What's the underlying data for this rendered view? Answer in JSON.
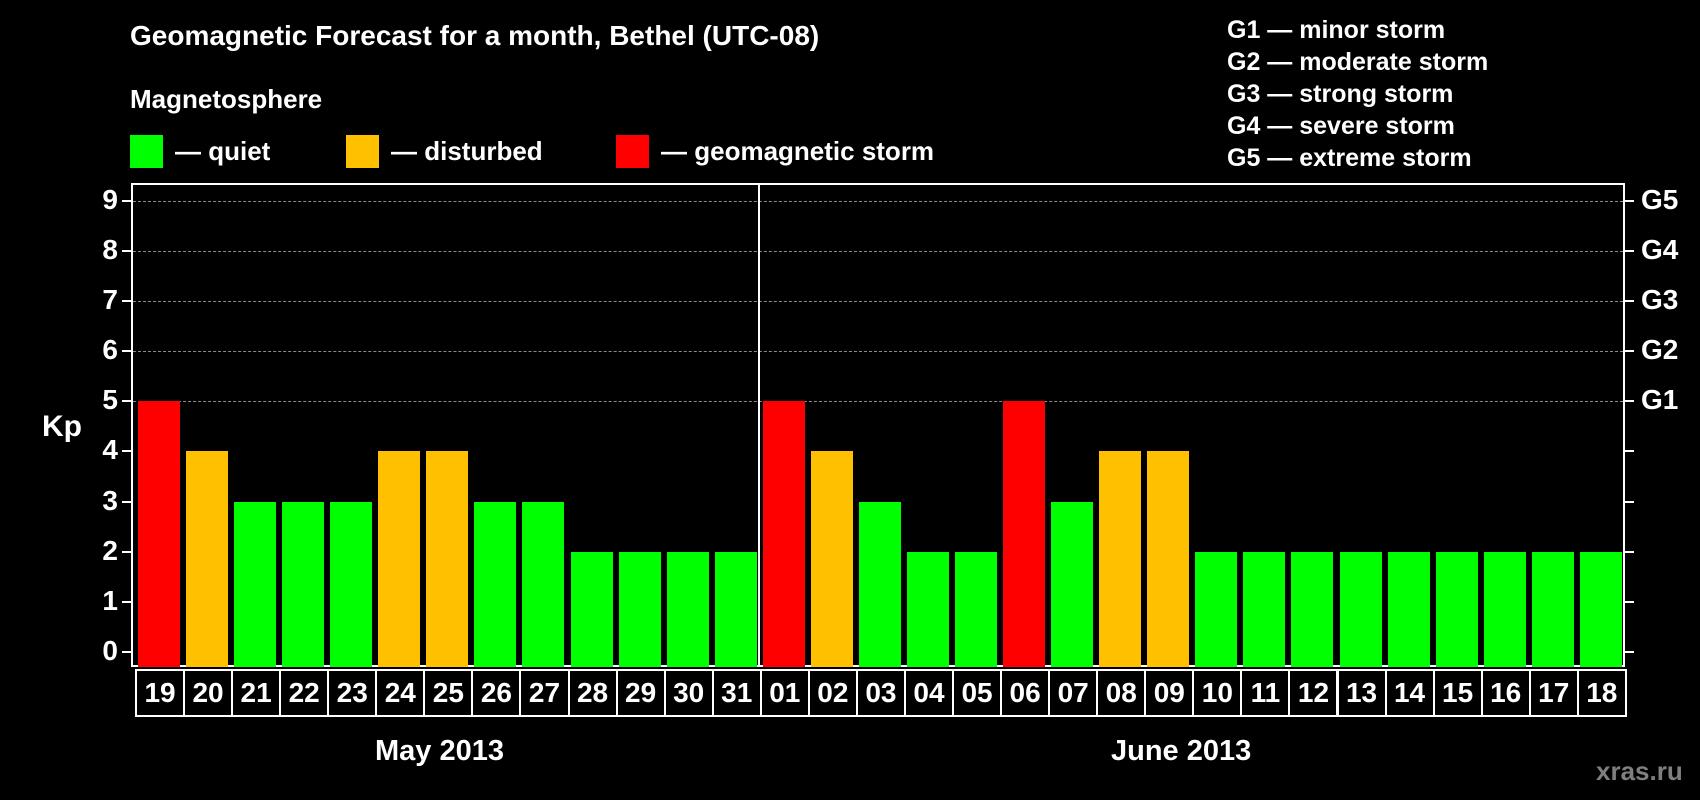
{
  "header": {
    "title": "Geomagnetic Forecast for a month, Bethel (UTC-08)",
    "subtitle": "Magnetosphere"
  },
  "legend": [
    {
      "label": "— quiet",
      "color": "#00ff00"
    },
    {
      "label": "— disturbed",
      "color": "#ffc000"
    },
    {
      "label": "— geomagnetic storm",
      "color": "#ff0000"
    }
  ],
  "g_scale_legend": [
    "G1 — minor storm",
    "G2 — moderate storm",
    "G3 — strong storm",
    "G4 — severe storm",
    "G5 — extreme storm"
  ],
  "watermark": "xras.ru",
  "chart_data": {
    "type": "bar",
    "title": "Geomagnetic Forecast for a month, Bethel (UTC-08)",
    "subtitle": "Magnetosphere",
    "xlabel": "",
    "ylabel": "Kp",
    "ylim": [
      0,
      9
    ],
    "yticks": [
      0,
      1,
      2,
      3,
      4,
      5,
      6,
      7,
      8,
      9
    ],
    "right_axis_labels": [
      {
        "kp": 5,
        "label": "G1"
      },
      {
        "kp": 6,
        "label": "G2"
      },
      {
        "kp": 7,
        "label": "G3"
      },
      {
        "kp": 8,
        "label": "G4"
      },
      {
        "kp": 9,
        "label": "G5"
      }
    ],
    "grid": "dashed horizontal at Kp 5-9",
    "month_groups": [
      {
        "label": "May 2013",
        "start_index": 0,
        "end_index": 12
      },
      {
        "label": "June 2013",
        "start_index": 13,
        "end_index": 30
      }
    ],
    "categories": [
      "19",
      "20",
      "21",
      "22",
      "23",
      "24",
      "25",
      "26",
      "27",
      "28",
      "29",
      "30",
      "31",
      "01",
      "02",
      "03",
      "04",
      "05",
      "06",
      "07",
      "08",
      "09",
      "10",
      "11",
      "12",
      "13",
      "14",
      "15",
      "16",
      "17",
      "18"
    ],
    "values": [
      5,
      4,
      3,
      3,
      3,
      4,
      4,
      3,
      3,
      2,
      2,
      2,
      2,
      5,
      4,
      3,
      2,
      2,
      5,
      3,
      4,
      4,
      2,
      2,
      2,
      2,
      2,
      2,
      2,
      2,
      2
    ],
    "status": [
      "storm",
      "disturbed",
      "quiet",
      "quiet",
      "quiet",
      "disturbed",
      "disturbed",
      "quiet",
      "quiet",
      "quiet",
      "quiet",
      "quiet",
      "quiet",
      "storm",
      "disturbed",
      "quiet",
      "quiet",
      "quiet",
      "storm",
      "quiet",
      "disturbed",
      "disturbed",
      "quiet",
      "quiet",
      "quiet",
      "quiet",
      "quiet",
      "quiet",
      "quiet",
      "quiet",
      "quiet"
    ],
    "status_colors": {
      "quiet": "#00ff00",
      "disturbed": "#ffc000",
      "storm": "#ff0000"
    },
    "legend": [
      "quiet",
      "disturbed",
      "geomagnetic storm"
    ]
  }
}
